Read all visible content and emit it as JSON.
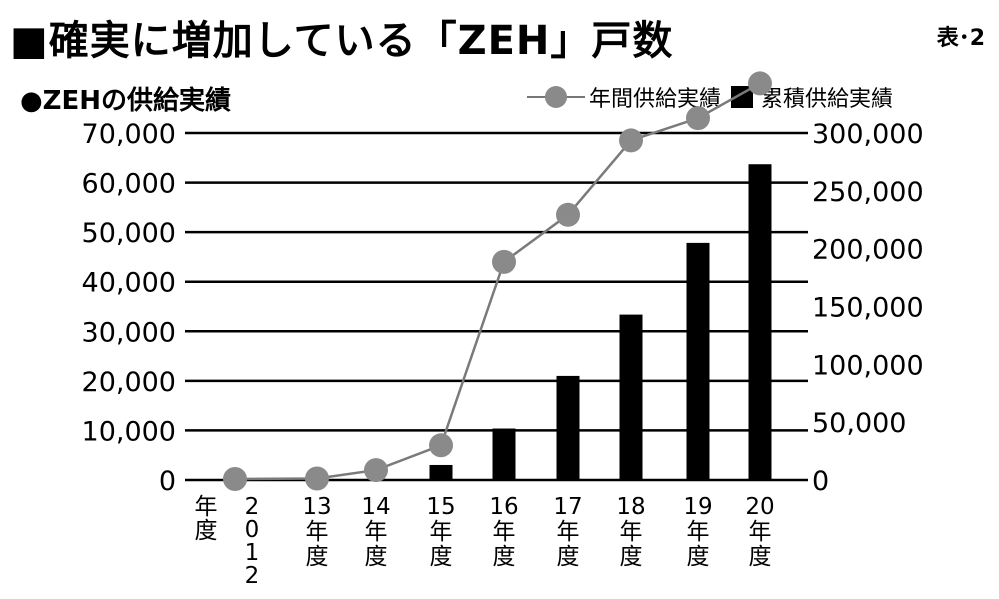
{
  "header": {
    "title": "■確実に増加している「ZEH」戸数",
    "table_no": "表･2"
  },
  "chart_data": {
    "type": "bar",
    "title": "●ZEHの供給実績",
    "categories": [
      "2012年度",
      "13年度",
      "14年度",
      "15年度",
      "16年度",
      "17年度",
      "18年度",
      "19年度",
      "20年度"
    ],
    "category_labels": [
      {
        "col1": "年度",
        "col2": "2012"
      },
      {
        "col1": "13",
        "col2": "年度"
      },
      {
        "col1": "14",
        "col2": "年度"
      },
      {
        "col1": "15",
        "col2": "年度"
      },
      {
        "col1": "16",
        "col2": "年度"
      },
      {
        "col1": "17",
        "col2": "年度"
      },
      {
        "col1": "18",
        "col2": "年度"
      },
      {
        "col1": "19",
        "col2": "年度"
      },
      {
        "col1": "20",
        "col2": "年度"
      }
    ],
    "series": [
      {
        "name": "年間供給実績",
        "type": "line",
        "axis": "left",
        "color": "#8a8a8a",
        "values": [
          200,
          300,
          2000,
          7000,
          44000,
          53500,
          68500,
          73000,
          80000
        ]
      },
      {
        "name": "累積供給実績",
        "type": "bar",
        "axis": "right",
        "color": "#000000",
        "values": [
          0,
          0,
          0,
          13000,
          44500,
          90000,
          143000,
          205000,
          273000
        ]
      }
    ],
    "y_left": {
      "min": 0,
      "max": 70000,
      "ticks": [
        "0",
        "10,000",
        "20,000",
        "30,000",
        "40,000",
        "50,000",
        "60,000",
        "70,000"
      ]
    },
    "y_right": {
      "min": 0,
      "max": 300000,
      "ticks": [
        "0",
        "50,000",
        "100,000",
        "150,000",
        "200,000",
        "250,000",
        "300,000"
      ]
    },
    "grid": true,
    "legend_position": "top-right"
  }
}
